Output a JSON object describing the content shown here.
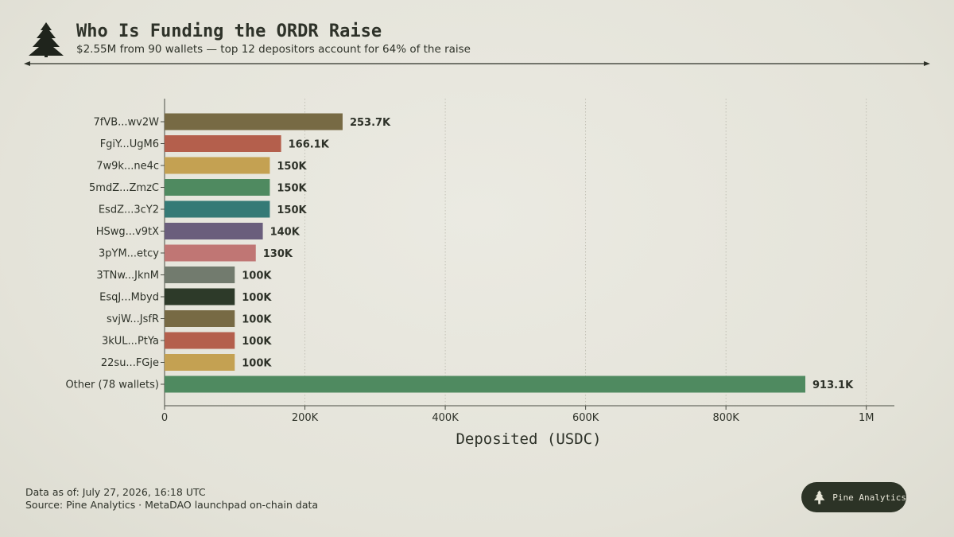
{
  "header": {
    "title": "Who Is Funding the ORDR Raise",
    "subtitle": "$2.55M from 90 wallets — top 12 depositors account for 64% of the raise"
  },
  "footer": {
    "data_as_of": "Data as of: July 27, 2026, 16:18 UTC",
    "source": "Source: Pine Analytics · MetaDAO launchpad on-chain data",
    "brand_badge": "Pine Analytics",
    "brand_icon": "pine-tree-icon"
  },
  "chart_data": {
    "type": "bar",
    "orientation": "horizontal",
    "title": "Who Is Funding the ORDR Raise",
    "xlabel": "Deposited (USDC)",
    "ylabel": "",
    "xlim": [
      0,
      1040000
    ],
    "xticks": [
      0,
      200000,
      400000,
      600000,
      800000,
      1000000
    ],
    "xtick_labels": [
      "0",
      "200K",
      "400K",
      "600K",
      "800K",
      "1M"
    ],
    "grid": "vertical dotted",
    "categories": [
      "7fVB...wv2W",
      "FgiY...UgM6",
      "7w9k...ne4c",
      "5mdZ...ZmzC",
      "EsdZ...3cY2",
      "HSwg...v9tX",
      "3pYM...etcy",
      "3TNw...JknM",
      "EsqJ...Mbyd",
      "svjW...JsfR",
      "3kUL...PtYa",
      "22su...FGje",
      "Other (78 wallets)"
    ],
    "values": [
      253700,
      166100,
      150000,
      150000,
      150000,
      140000,
      130000,
      100000,
      100000,
      100000,
      100000,
      100000,
      913100
    ],
    "value_labels": [
      "253.7K",
      "166.1K",
      "150K",
      "150K",
      "150K",
      "140K",
      "130K",
      "100K",
      "100K",
      "100K",
      "100K",
      "100K",
      "913.1K"
    ],
    "colors": [
      "#776a44",
      "#b45f4c",
      "#c4a152",
      "#4f8a60",
      "#357a76",
      "#6a5e7c",
      "#c07674",
      "#727b6e",
      "#2d3a29",
      "#776a44",
      "#b45f4c",
      "#c4a152",
      "#4f8a60"
    ]
  }
}
